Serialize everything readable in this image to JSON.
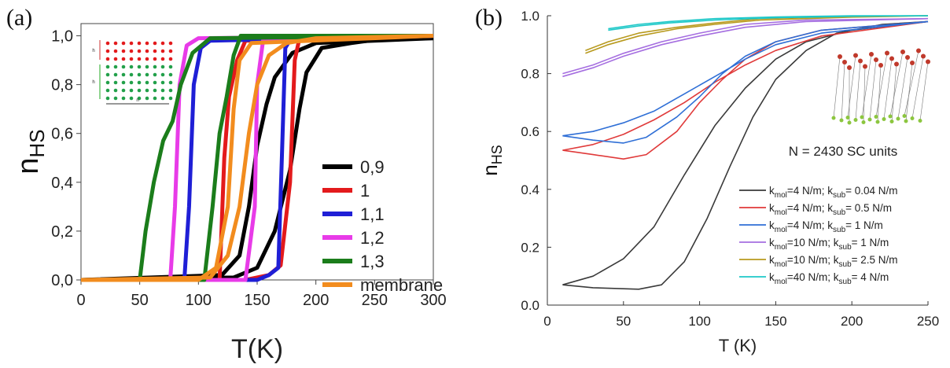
{
  "panel_labels": {
    "a": "(a)",
    "b": "(b)"
  },
  "chart_data": [
    {
      "type": "line",
      "xlabel": "T(K)",
      "ylabel": "nHS",
      "ylabel_main": "n",
      "ylabel_sub": "HS",
      "xlim": [
        0,
        300
      ],
      "ylim": [
        0,
        1.05
      ],
      "xticks": [
        0,
        50,
        100,
        150,
        200,
        250,
        300
      ],
      "yticks": [
        0.0,
        0.2,
        0.4,
        0.6,
        0.8,
        1.0
      ],
      "ytick_labels": [
        "0,0",
        "0,2",
        "0,4",
        "0,6",
        "0,8",
        "1,0"
      ],
      "inset_symbols": [
        "h",
        "h",
        "n"
      ],
      "legend": {
        "placement": "center-right"
      },
      "series": [
        {
          "name": "0,9",
          "color": "#000000",
          "heating": [
            [
              0,
              0
            ],
            [
              130,
              0.01
            ],
            [
              150,
              0.05
            ],
            [
              165,
              0.2
            ],
            [
              178,
              0.45
            ],
            [
              186,
              0.7
            ],
            [
              192,
              0.85
            ],
            [
              205,
              0.95
            ],
            [
              230,
              0.97
            ],
            [
              260,
              0.99
            ],
            [
              300,
              0.99
            ]
          ],
          "cooling": [
            [
              0,
              0
            ],
            [
              120,
              0.02
            ],
            [
              135,
              0.1
            ],
            [
              143,
              0.3
            ],
            [
              150,
              0.55
            ],
            [
              158,
              0.72
            ],
            [
              165,
              0.83
            ],
            [
              180,
              0.93
            ],
            [
              200,
              0.97
            ],
            [
              300,
              0.99
            ]
          ]
        },
        {
          "name": "1",
          "color": "#e31a1c",
          "heating": [
            [
              0,
              0
            ],
            [
              140,
              0.0
            ],
            [
              160,
              0.02
            ],
            [
              170,
              0.06
            ],
            [
              178,
              0.4
            ],
            [
              182,
              0.9
            ],
            [
              186,
              0.99
            ],
            [
              300,
              1.0
            ]
          ],
          "cooling": [
            [
              0,
              0
            ],
            [
              118,
              0.0
            ],
            [
              122,
              0.5
            ],
            [
              126,
              0.75
            ],
            [
              133,
              0.9
            ],
            [
              140,
              0.98
            ],
            [
              300,
              1.0
            ]
          ]
        },
        {
          "name": "1,1",
          "color": "#1f1fd6",
          "heating": [
            [
              0,
              0
            ],
            [
              150,
              0.0
            ],
            [
              160,
              0.02
            ],
            [
              168,
              0.05
            ],
            [
              171,
              0.5
            ],
            [
              174,
              0.95
            ],
            [
              180,
              1.0
            ],
            [
              300,
              1.0
            ]
          ],
          "cooling": [
            [
              0,
              0
            ],
            [
              88,
              0.0
            ],
            [
              92,
              0.3
            ],
            [
              96,
              0.8
            ],
            [
              102,
              0.95
            ],
            [
              110,
              0.98
            ],
            [
              300,
              1.0
            ]
          ]
        },
        {
          "name": "1,2",
          "color": "#e83be8",
          "heating": [
            [
              0,
              0
            ],
            [
              140,
              0.0
            ],
            [
              148,
              0.3
            ],
            [
              150,
              0.8
            ],
            [
              155,
              0.98
            ],
            [
              300,
              1.0
            ]
          ],
          "cooling": [
            [
              0,
              0
            ],
            [
              76,
              0.0
            ],
            [
              80,
              0.3
            ],
            [
              84,
              0.8
            ],
            [
              90,
              0.96
            ],
            [
              100,
              0.99
            ],
            [
              300,
              1.0
            ]
          ]
        },
        {
          "name": "1,3",
          "color": "#1b7d1b",
          "heating": [
            [
              0,
              0
            ],
            [
              105,
              0.0
            ],
            [
              112,
              0.3
            ],
            [
              118,
              0.6
            ],
            [
              124,
              0.75
            ],
            [
              130,
              0.92
            ],
            [
              136,
              1.0
            ],
            [
              300,
              1.0
            ]
          ],
          "cooling": [
            [
              0,
              0
            ],
            [
              50,
              0.0
            ],
            [
              55,
              0.2
            ],
            [
              62,
              0.4
            ],
            [
              70,
              0.57
            ],
            [
              78,
              0.65
            ],
            [
              85,
              0.8
            ],
            [
              95,
              0.93
            ],
            [
              110,
              0.99
            ],
            [
              300,
              1.0
            ]
          ]
        },
        {
          "name": "membrane",
          "color": "#f28c1e",
          "heating": [
            [
              0,
              0
            ],
            [
              110,
              0.01
            ],
            [
              125,
              0.1
            ],
            [
              135,
              0.3
            ],
            [
              143,
              0.6
            ],
            [
              150,
              0.8
            ],
            [
              160,
              0.92
            ],
            [
              175,
              0.97
            ],
            [
              200,
              0.99
            ],
            [
              300,
              1.0
            ]
          ],
          "cooling": [
            [
              0,
              0
            ],
            [
              100,
              0.0
            ],
            [
              115,
              0.05
            ],
            [
              125,
              0.3
            ],
            [
              130,
              0.7
            ],
            [
              135,
              0.9
            ],
            [
              145,
              0.97
            ],
            [
              300,
              1.0
            ]
          ]
        }
      ]
    },
    {
      "type": "line",
      "xlabel": "T (K)",
      "ylabel": "nHS",
      "ylabel_main": "n",
      "ylabel_sub": "HS",
      "xlim": [
        0,
        250
      ],
      "ylim": [
        0,
        1.0
      ],
      "xticks": [
        0,
        50,
        100,
        150,
        200,
        250
      ],
      "yticks": [
        0.0,
        0.2,
        0.4,
        0.6,
        0.8,
        1.0
      ],
      "ytick_labels": [
        "0.0",
        "0.2",
        "0.4",
        "0.6",
        "0.8",
        "1.0"
      ],
      "annotation": "N = 2430 SC units",
      "legend": {
        "placement": "bottom-right"
      },
      "series": [
        {
          "name": "k_mol=4 N/m; k_sub= 0.04 N/m",
          "k1": "mol",
          "v1": "=4 N/m; k",
          "k2": "sub",
          "v2": "= 0.04 N/m",
          "color": "#3a3a3a",
          "heating": [
            [
              10,
              0.07
            ],
            [
              30,
              0.06
            ],
            [
              60,
              0.055
            ],
            [
              75,
              0.07
            ],
            [
              90,
              0.15
            ],
            [
              105,
              0.3
            ],
            [
              120,
              0.48
            ],
            [
              135,
              0.65
            ],
            [
              150,
              0.78
            ],
            [
              170,
              0.88
            ],
            [
              190,
              0.94
            ],
            [
              220,
              0.97
            ],
            [
              250,
              0.98
            ]
          ],
          "cooling": [
            [
              10,
              0.07
            ],
            [
              30,
              0.1
            ],
            [
              50,
              0.16
            ],
            [
              70,
              0.27
            ],
            [
              90,
              0.45
            ],
            [
              110,
              0.62
            ],
            [
              130,
              0.75
            ],
            [
              150,
              0.85
            ],
            [
              170,
              0.91
            ],
            [
              200,
              0.95
            ],
            [
              250,
              0.98
            ]
          ]
        },
        {
          "name": "k_mol=4 N/m; k_sub= 0.5 N/m",
          "k1": "mol",
          "v1": "=4 N/m; k",
          "k2": "sub",
          "v2": "= 0.5 N/m",
          "color": "#e03a3a",
          "heating": [
            [
              10,
              0.535
            ],
            [
              30,
              0.52
            ],
            [
              50,
              0.505
            ],
            [
              65,
              0.52
            ],
            [
              85,
              0.6
            ],
            [
              100,
              0.7
            ],
            [
              115,
              0.78
            ],
            [
              130,
              0.85
            ],
            [
              150,
              0.91
            ],
            [
              180,
              0.95
            ],
            [
              250,
              0.98
            ]
          ],
          "cooling": [
            [
              10,
              0.535
            ],
            [
              30,
              0.555
            ],
            [
              50,
              0.59
            ],
            [
              70,
              0.64
            ],
            [
              90,
              0.7
            ],
            [
              110,
              0.77
            ],
            [
              130,
              0.83
            ],
            [
              150,
              0.88
            ],
            [
              180,
              0.93
            ],
            [
              250,
              0.98
            ]
          ]
        },
        {
          "name": "k_mol=4 N/m; k_sub= 1 N/m",
          "k1": "mol",
          "v1": "=4 N/m; k",
          "k2": "sub",
          "v2": "= 1 N/m",
          "color": "#2f6fd6",
          "heating": [
            [
              10,
              0.585
            ],
            [
              30,
              0.57
            ],
            [
              50,
              0.56
            ],
            [
              65,
              0.58
            ],
            [
              85,
              0.65
            ],
            [
              100,
              0.72
            ],
            [
              115,
              0.8
            ],
            [
              130,
              0.86
            ],
            [
              150,
              0.91
            ],
            [
              180,
              0.95
            ],
            [
              250,
              0.98
            ]
          ],
          "cooling": [
            [
              10,
              0.585
            ],
            [
              30,
              0.6
            ],
            [
              50,
              0.63
            ],
            [
              70,
              0.67
            ],
            [
              90,
              0.73
            ],
            [
              110,
              0.79
            ],
            [
              130,
              0.85
            ],
            [
              150,
              0.9
            ],
            [
              180,
              0.94
            ],
            [
              250,
              0.98
            ]
          ]
        },
        {
          "name": "k_mol=10 N/m; k_sub= 1 N/m",
          "k1": "mol",
          "v1": "=10 N/m; k",
          "k2": "sub",
          "v2": "= 1 N/m",
          "color": "#a56ee0",
          "heating": [
            [
              10,
              0.79
            ],
            [
              30,
              0.82
            ],
            [
              50,
              0.86
            ],
            [
              75,
              0.9
            ],
            [
              100,
              0.93
            ],
            [
              130,
              0.96
            ],
            [
              170,
              0.98
            ],
            [
              250,
              0.99
            ]
          ],
          "cooling": [
            [
              10,
              0.8
            ],
            [
              30,
              0.83
            ],
            [
              50,
              0.87
            ],
            [
              75,
              0.91
            ],
            [
              100,
              0.94
            ],
            [
              130,
              0.97
            ],
            [
              170,
              0.985
            ],
            [
              250,
              0.99
            ]
          ]
        },
        {
          "name": "k_mol=10 N/m; k_sub= 2.5 N/m",
          "k1": "mol",
          "v1": "=10 N/m; k",
          "k2": "sub",
          "v2": "= 2.5 N/m",
          "color": "#b89a1e",
          "heating": [
            [
              25,
              0.87
            ],
            [
              40,
              0.9
            ],
            [
              60,
              0.93
            ],
            [
              85,
              0.955
            ],
            [
              110,
              0.97
            ],
            [
              140,
              0.985
            ],
            [
              200,
              0.995
            ],
            [
              250,
              1.0
            ]
          ],
          "cooling": [
            [
              25,
              0.88
            ],
            [
              40,
              0.91
            ],
            [
              60,
              0.94
            ],
            [
              85,
              0.96
            ],
            [
              110,
              0.975
            ],
            [
              140,
              0.99
            ],
            [
              200,
              0.998
            ],
            [
              250,
              1.0
            ]
          ]
        },
        {
          "name": "k_mol=40 N/m; k_sub= 4 N/m",
          "k1": "mol",
          "v1": "=40 N/m; k",
          "k2": "sub",
          "v2": "= 4 N/m",
          "color": "#1ec8c8",
          "heating": [
            [
              40,
              0.95
            ],
            [
              60,
              0.965
            ],
            [
              80,
              0.975
            ],
            [
              110,
              0.985
            ],
            [
              150,
              0.993
            ],
            [
              200,
              0.998
            ],
            [
              250,
              1.0
            ]
          ],
          "cooling": [
            [
              40,
              0.955
            ],
            [
              60,
              0.97
            ],
            [
              80,
              0.98
            ],
            [
              110,
              0.99
            ],
            [
              150,
              0.996
            ],
            [
              200,
              1.0
            ],
            [
              250,
              1.0
            ]
          ]
        }
      ]
    }
  ]
}
